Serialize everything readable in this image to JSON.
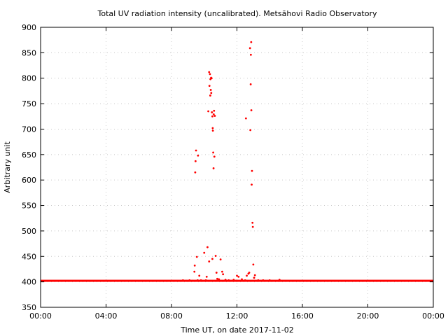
{
  "chart_data": {
    "type": "scatter",
    "title": "Total UV radiation intensity (uncalibrated). Metsähovi Radio Observatory",
    "xlabel": "Time UT, on date 2017-11-02",
    "ylabel": "Arbitrary unit",
    "x_unit": "hours UT",
    "xlim": [
      0,
      24
    ],
    "ylim": [
      350,
      900
    ],
    "x_ticks": [
      {
        "value": 0,
        "label": "00:00"
      },
      {
        "value": 4,
        "label": "04:00"
      },
      {
        "value": 8,
        "label": "08:00"
      },
      {
        "value": 12,
        "label": "12:00"
      },
      {
        "value": 16,
        "label": "16:00"
      },
      {
        "value": 20,
        "label": "20:00"
      },
      {
        "value": 24,
        "label": "00:00"
      }
    ],
    "y_ticks": [
      350,
      400,
      450,
      500,
      550,
      600,
      650,
      700,
      750,
      800,
      850,
      900
    ],
    "grid": true,
    "marker_color": "#ff0000",
    "series": [
      {
        "baseline": {
          "x_start": 0,
          "x_end": 24,
          "y": 402
        },
        "points": [
          [
            8.7,
            403
          ],
          [
            8.9,
            402
          ],
          [
            9.1,
            403
          ],
          [
            9.3,
            402
          ],
          [
            9.4,
            420
          ],
          [
            9.42,
            432
          ],
          [
            9.45,
            615
          ],
          [
            9.47,
            637
          ],
          [
            9.5,
            658
          ],
          [
            9.55,
            449
          ],
          [
            9.6,
            403
          ],
          [
            9.62,
            648
          ],
          [
            9.7,
            412
          ],
          [
            9.8,
            403
          ],
          [
            10.0,
            457
          ],
          [
            10.1,
            403
          ],
          [
            10.15,
            410
          ],
          [
            10.2,
            468
          ],
          [
            10.25,
            735
          ],
          [
            10.3,
            812
          ],
          [
            10.32,
            785
          ],
          [
            10.35,
            808
          ],
          [
            10.37,
            766
          ],
          [
            10.38,
            798
          ],
          [
            10.4,
            777
          ],
          [
            10.42,
            801
          ],
          [
            10.43,
            771
          ],
          [
            10.45,
            800
          ],
          [
            10.47,
            733
          ],
          [
            10.5,
            725
          ],
          [
            10.52,
            702
          ],
          [
            10.53,
            697
          ],
          [
            10.55,
            654
          ],
          [
            10.57,
            623
          ],
          [
            10.58,
            729
          ],
          [
            10.6,
            736
          ],
          [
            10.62,
            646
          ],
          [
            10.65,
            726
          ],
          [
            10.3,
            440
          ],
          [
            10.5,
            445
          ],
          [
            10.7,
            451
          ],
          [
            10.75,
            418
          ],
          [
            10.8,
            406
          ],
          [
            10.9,
            405
          ],
          [
            11.0,
            444
          ],
          [
            11.1,
            420
          ],
          [
            11.15,
            415
          ],
          [
            11.3,
            404
          ],
          [
            11.5,
            403
          ],
          [
            11.8,
            404
          ],
          [
            12.0,
            412
          ],
          [
            12.1,
            410
          ],
          [
            12.3,
            405
          ],
          [
            12.5,
            403
          ],
          [
            12.55,
            721
          ],
          [
            12.6,
            412
          ],
          [
            12.7,
            416
          ],
          [
            12.75,
            418
          ],
          [
            12.8,
            859
          ],
          [
            12.82,
            698
          ],
          [
            12.84,
            788
          ],
          [
            12.85,
            846
          ],
          [
            12.87,
            871
          ],
          [
            12.88,
            737
          ],
          [
            12.9,
            591
          ],
          [
            12.92,
            618
          ],
          [
            12.95,
            516
          ],
          [
            12.97,
            508
          ],
          [
            13.0,
            434
          ],
          [
            13.05,
            408
          ],
          [
            13.1,
            413
          ],
          [
            13.3,
            403
          ],
          [
            13.6,
            403
          ],
          [
            14.0,
            403
          ],
          [
            14.6,
            404
          ]
        ]
      }
    ]
  }
}
